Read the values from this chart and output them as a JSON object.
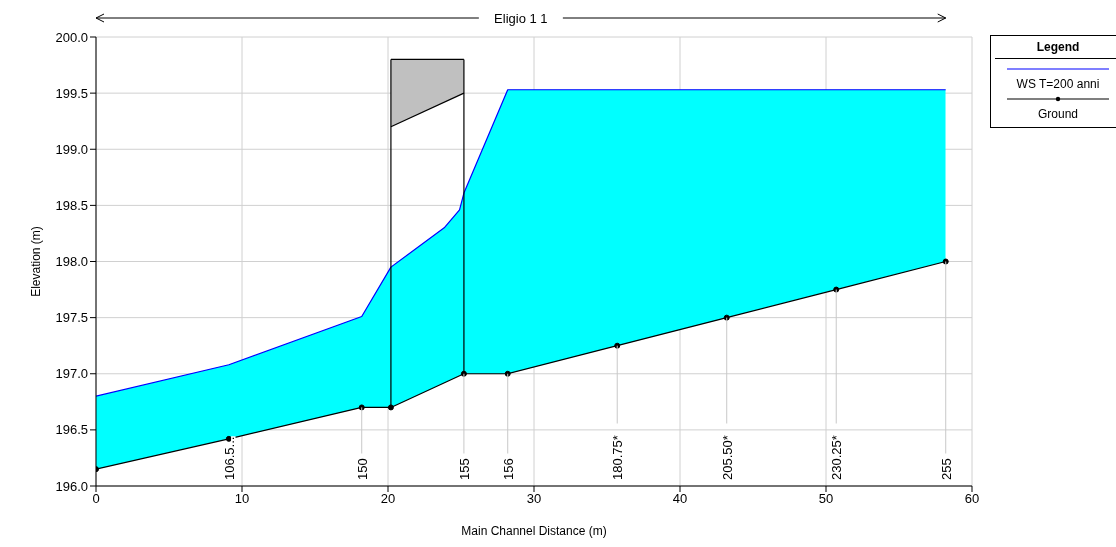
{
  "chart_data": {
    "type": "area",
    "title": "Eligio 1 1",
    "xlabel": "Main Channel Distance (m)",
    "ylabel": "Elevation (m)",
    "legend_title": "Legend",
    "legend": "right",
    "grid": true,
    "xlim": [
      0,
      60
    ],
    "xticks": [
      0,
      10,
      20,
      30,
      40,
      50,
      60
    ],
    "ylim": [
      196,
      200
    ],
    "yticks": [
      {
        "value": 196,
        "label": "196.0"
      },
      {
        "value": 196.5,
        "label": "196.5"
      },
      {
        "value": 197,
        "label": "197.0"
      },
      {
        "value": 197.5,
        "label": "197.5"
      },
      {
        "value": 198,
        "label": "198.0"
      },
      {
        "value": 198.5,
        "label": "198.5"
      },
      {
        "value": 199,
        "label": "199.0"
      },
      {
        "value": 199.5,
        "label": "199.5"
      },
      {
        "value": 200,
        "label": "200.0"
      }
    ],
    "series": [
      {
        "name": "WS T=200 anni",
        "color": "#00ffff",
        "x": [
          0,
          9.1,
          18.2,
          20.2,
          23.85,
          24.9,
          25.2,
          28.2,
          58.2
        ],
        "values": [
          196.8,
          197.08,
          197.51,
          197.95,
          198.3,
          198.46,
          198.61,
          199.53,
          199.53
        ]
      },
      {
        "name": "Ground",
        "type": "line",
        "color": "#000000",
        "marker": "circle",
        "x": [
          0,
          9.1,
          18.2,
          20.2,
          25.2,
          28.2,
          35.7,
          43.2,
          50.7,
          58.2
        ],
        "values": [
          196.15,
          196.42,
          196.7,
          196.7,
          197.0,
          197.0,
          197.25,
          197.5,
          197.75,
          198.0
        ]
      },
      {
        "type": "line",
        "color": "#000000",
        "x": [
          20.2,
          25.2
        ],
        "values": [
          199.8,
          199.8
        ],
        "lower": [
          199.2,
          199.5
        ],
        "upper": [
          199.8,
          199.8
        ]
      },
      {
        "type": "line",
        "color": "#000000",
        "x": [
          20.2,
          25.2
        ],
        "values": [
          199.2,
          199.5
        ]
      },
      {
        "type": "line",
        "color": "#000000",
        "x": [
          20.2,
          20.2
        ],
        "values": [
          196.7,
          199.8
        ]
      },
      {
        "type": "line",
        "color": "#000000",
        "x": [
          25.2,
          25.2
        ],
        "values": [
          197.0,
          199.8
        ]
      }
    ],
    "annotations": [
      {
        "text": "106.5...",
        "x": 9.1,
        "y": 196.42
      },
      {
        "text": "150",
        "x": 18.2,
        "y": 196.7
      },
      {
        "text": "155",
        "x": 25.2,
        "y": 197.0
      },
      {
        "text": "156",
        "x": 28.2,
        "y": 197.0
      },
      {
        "text": "180.75*",
        "x": 35.7,
        "y": 197.25
      },
      {
        "text": "205.50*",
        "x": 43.2,
        "y": 197.5
      },
      {
        "text": "230.25*",
        "x": 50.7,
        "y": 197.75
      },
      {
        "text": "255",
        "x": 58.2,
        "y": 198.0
      }
    ]
  }
}
